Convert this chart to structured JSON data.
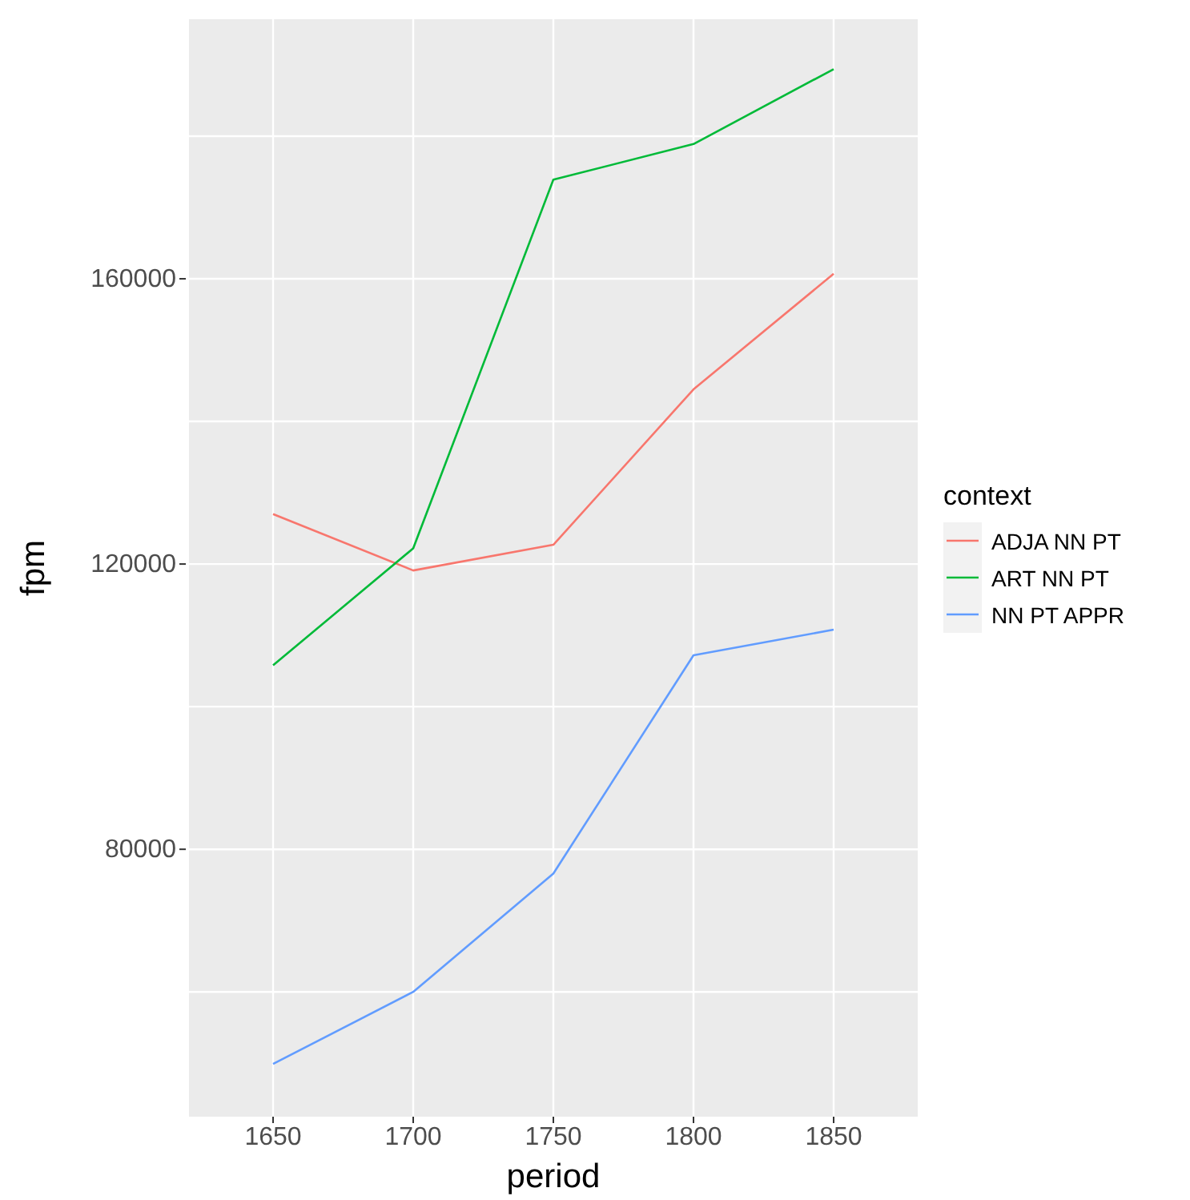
{
  "chart_data": {
    "type": "line",
    "xlabel": "period",
    "ylabel": "fpm",
    "legend_title": "context",
    "legend": "right",
    "grid": true,
    "marker": "none",
    "line_style": "solid",
    "x": [
      1650,
      1700,
      1750,
      1800,
      1850
    ],
    "xlim": [
      1620,
      1880
    ],
    "xticks": [
      1650,
      1700,
      1750,
      1800,
      1850
    ],
    "ylim": [
      42500,
      196400
    ],
    "yticks": [
      {
        "value": 60000,
        "label": null
      },
      80000,
      {
        "value": 100000,
        "label": null
      },
      120000,
      {
        "value": 140000,
        "label": null
      },
      160000,
      {
        "value": 180000,
        "label": null
      }
    ],
    "series": [
      {
        "name": "ADJA NN PT",
        "color": "#f8766d",
        "values": [
          127000,
          119100,
          122700,
          144500,
          160700
        ]
      },
      {
        "name": "ART NN PT",
        "color": "#00ba38",
        "values": [
          105800,
          122200,
          173900,
          178900,
          189400
        ]
      },
      {
        "name": "NN PT APPR",
        "color": "#619cff",
        "values": [
          49900,
          60000,
          76600,
          107200,
          110800
        ]
      }
    ]
  }
}
